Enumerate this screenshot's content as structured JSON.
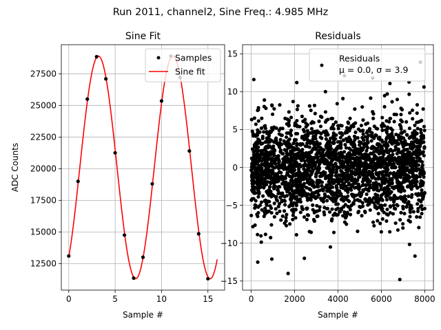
{
  "figure": {
    "suptitle": "Run 2011, channel2, Sine Freq.: 4.985 MHz"
  },
  "chart_data": [
    {
      "type": "line",
      "title": "Sine Fit",
      "xlabel": "Sample #",
      "ylabel": "ADC Counts",
      "xlim": [
        -0.8,
        16.8
      ],
      "ylim": [
        10400,
        29800
      ],
      "xticks": [
        0,
        5,
        10,
        15
      ],
      "yticks": [
        12500,
        15000,
        17500,
        20000,
        22500,
        25000,
        27500
      ],
      "ytick_labels": [
        "12500",
        "15000",
        "17500",
        "20000",
        "22500",
        "25000",
        "27500"
      ],
      "grid": true,
      "legend": {
        "placement": "upper-right",
        "entries": [
          "Samples",
          "Sine fit"
        ]
      },
      "colors": {
        "samples": "#000000",
        "fit": "#ff0000"
      },
      "series": [
        {
          "name": "Samples",
          "style": "markers",
          "x": [
            0,
            1,
            2,
            3,
            4,
            5,
            6,
            7,
            8,
            9,
            10,
            11,
            12,
            13,
            14,
            15
          ],
          "y": [
            13100,
            19000,
            25500,
            28850,
            27100,
            21250,
            14750,
            11350,
            13000,
            18800,
            25350,
            28900,
            27200,
            21400,
            14850,
            11300
          ]
        },
        {
          "name": "Sine fit",
          "style": "line",
          "model": {
            "amplitude": 8800,
            "offset": 20100,
            "period_samples": 8.023,
            "phase_peak_sample": 3.2,
            "x_range": [
              0,
              16
            ]
          }
        }
      ]
    },
    {
      "type": "scatter",
      "title": "Residuals",
      "xlabel": "Sample #",
      "ylabel": "",
      "xlim": [
        -400,
        8400
      ],
      "ylim": [
        -16.2,
        16.2
      ],
      "xticks": [
        0,
        2000,
        4000,
        6000,
        8000
      ],
      "yticks": [
        -15,
        -10,
        -5,
        0,
        5,
        10,
        15
      ],
      "grid": true,
      "legend": {
        "placement": "upper-right",
        "entries": [
          "Residuals",
          "μ = 0.0, σ = 3.9"
        ]
      },
      "colors": {
        "points": "#000000"
      },
      "series": [
        {
          "name": "Residuals",
          "n_points": 8000,
          "mean": 0.0,
          "std": 3.9,
          "notable_points": [
            {
              "x": 120,
              "y": 11.6
            },
            {
              "x": 2100,
              "y": 11.2
            },
            {
              "x": 7800,
              "y": 13.9
            },
            {
              "x": 1700,
              "y": -14.0
            },
            {
              "x": 6850,
              "y": -14.8
            },
            {
              "x": 300,
              "y": -12.5
            },
            {
              "x": 2450,
              "y": -12.0
            },
            {
              "x": 3650,
              "y": -10.5
            },
            {
              "x": 7550,
              "y": -11.7
            },
            {
              "x": 4300,
              "y": 12.1
            },
            {
              "x": 5600,
              "y": 11.8
            },
            {
              "x": 950,
              "y": -12.1
            }
          ]
        }
      ]
    }
  ]
}
